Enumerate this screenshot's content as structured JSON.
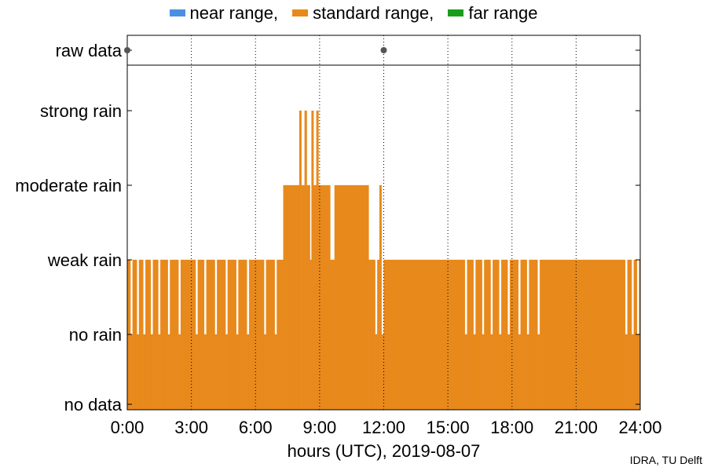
{
  "chart_data": {
    "type": "bar",
    "xlabel": "hours (UTC), 2019-08-07",
    "xlim": [
      0,
      24
    ],
    "x_ticks": [
      {
        "value": 0,
        "label": "0:00"
      },
      {
        "value": 3,
        "label": "3:00"
      },
      {
        "value": 6,
        "label": "6:00"
      },
      {
        "value": 9,
        "label": "9:00"
      },
      {
        "value": 12,
        "label": "12:00"
      },
      {
        "value": 15,
        "label": "15:00"
      },
      {
        "value": 18,
        "label": "18:00"
      },
      {
        "value": 21,
        "label": "21:00"
      },
      {
        "value": 24,
        "label": "24:00"
      }
    ],
    "y_categories": [
      "no data",
      "no rain",
      "weak rain",
      "moderate rain",
      "strong rain"
    ],
    "legend": {
      "placement": "top",
      "entries": [
        {
          "label": "near range,",
          "color": "#4a90e2"
        },
        {
          "label": "standard range,",
          "color": "#e8891c"
        },
        {
          "label": "far range",
          "color": "#1a9e1a"
        }
      ]
    },
    "raw_data": {
      "label": "raw data",
      "points": [
        0,
        12
      ]
    },
    "series": [
      {
        "color": "#e8891c",
        "segments": [
          [
            0.0,
            0.15,
            2
          ],
          [
            0.15,
            0.25,
            1
          ],
          [
            0.25,
            0.45,
            2
          ],
          [
            0.45,
            0.55,
            1
          ],
          [
            0.55,
            0.75,
            2
          ],
          [
            0.75,
            0.85,
            1
          ],
          [
            0.85,
            1.1,
            2
          ],
          [
            1.1,
            1.2,
            1
          ],
          [
            1.2,
            1.45,
            2
          ],
          [
            1.45,
            1.55,
            1
          ],
          [
            1.55,
            1.9,
            2
          ],
          [
            1.9,
            2.0,
            1
          ],
          [
            2.0,
            2.4,
            2
          ],
          [
            2.4,
            2.5,
            1
          ],
          [
            2.5,
            3.2,
            2
          ],
          [
            3.2,
            3.3,
            1
          ],
          [
            3.3,
            3.6,
            2
          ],
          [
            3.6,
            3.7,
            1
          ],
          [
            3.7,
            4.1,
            2
          ],
          [
            4.1,
            4.2,
            1
          ],
          [
            4.2,
            4.6,
            2
          ],
          [
            4.6,
            4.7,
            1
          ],
          [
            4.7,
            5.1,
            2
          ],
          [
            5.1,
            5.2,
            1
          ],
          [
            5.2,
            5.6,
            2
          ],
          [
            5.6,
            5.7,
            1
          ],
          [
            5.7,
            6.4,
            2
          ],
          [
            6.4,
            6.5,
            1
          ],
          [
            6.5,
            6.9,
            2
          ],
          [
            6.9,
            7.0,
            1
          ],
          [
            7.0,
            7.3,
            2
          ],
          [
            7.3,
            8.05,
            3
          ],
          [
            8.05,
            8.15,
            4
          ],
          [
            8.15,
            8.3,
            3
          ],
          [
            8.3,
            8.4,
            4
          ],
          [
            8.4,
            8.55,
            3
          ],
          [
            8.55,
            8.62,
            2
          ],
          [
            8.62,
            8.72,
            4
          ],
          [
            8.72,
            8.85,
            3
          ],
          [
            8.85,
            8.95,
            4
          ],
          [
            8.95,
            9.5,
            3
          ],
          [
            9.5,
            9.7,
            2
          ],
          [
            9.7,
            11.3,
            3
          ],
          [
            11.3,
            11.6,
            2
          ],
          [
            11.6,
            11.7,
            1
          ],
          [
            11.7,
            11.8,
            2
          ],
          [
            11.8,
            11.9,
            3
          ],
          [
            11.9,
            12.0,
            1
          ],
          [
            12.0,
            15.8,
            2
          ],
          [
            15.8,
            15.9,
            1
          ],
          [
            15.9,
            16.2,
            2
          ],
          [
            16.2,
            16.3,
            1
          ],
          [
            16.3,
            16.6,
            2
          ],
          [
            16.6,
            16.7,
            1
          ],
          [
            16.7,
            17.0,
            2
          ],
          [
            17.0,
            17.1,
            1
          ],
          [
            17.1,
            17.4,
            2
          ],
          [
            17.4,
            17.5,
            1
          ],
          [
            17.5,
            17.8,
            2
          ],
          [
            17.8,
            17.9,
            1
          ],
          [
            17.9,
            18.3,
            2
          ],
          [
            18.3,
            18.4,
            1
          ],
          [
            18.4,
            18.7,
            2
          ],
          [
            18.7,
            18.8,
            1
          ],
          [
            18.8,
            19.2,
            2
          ],
          [
            19.2,
            19.3,
            1
          ],
          [
            19.3,
            23.3,
            2
          ],
          [
            23.3,
            23.4,
            1
          ],
          [
            23.4,
            23.6,
            2
          ],
          [
            23.6,
            23.7,
            1
          ],
          [
            23.7,
            23.85,
            2
          ],
          [
            23.85,
            23.95,
            1
          ],
          [
            23.95,
            24.0,
            2
          ]
        ]
      }
    ]
  },
  "credit": "IDRA, TU Delft"
}
